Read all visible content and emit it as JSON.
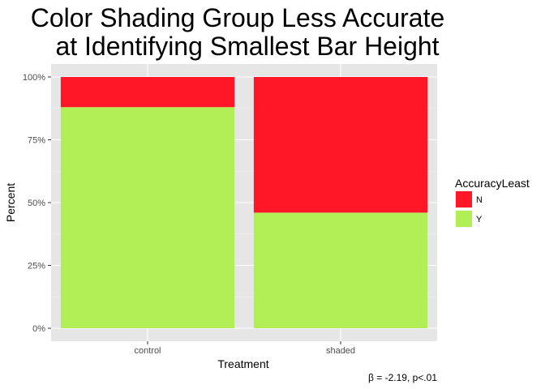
{
  "chart_data": {
    "type": "bar",
    "stacked": true,
    "title_lines": [
      "Color Shading Group Less Accurate",
      "at Identifying Smallest Bar Height"
    ],
    "xlabel": "Treatment",
    "ylabel": "Percent",
    "categories": [
      "control",
      "shaded"
    ],
    "ylim": [
      0,
      1
    ],
    "yticks": [
      {
        "value": 0,
        "label": "0%"
      },
      {
        "value": 0.25,
        "label": "25%"
      },
      {
        "value": 0.5,
        "label": "50%"
      },
      {
        "value": 0.75,
        "label": "75%"
      },
      {
        "value": 1,
        "label": "100%"
      }
    ],
    "series": [
      {
        "name": "Y",
        "color": "#b2ef57",
        "values": [
          0.88,
          0.46
        ]
      },
      {
        "name": "N",
        "color": "#ff1728",
        "values": [
          0.12,
          0.54
        ]
      }
    ],
    "legend": {
      "title": "AccuracyLeast",
      "placement": "right",
      "entries": [
        {
          "label": "N",
          "color": "#ff1728"
        },
        {
          "label": "Y",
          "color": "#b2ef57"
        }
      ]
    },
    "grid": true,
    "panel_background": "#e6e6e6",
    "caption": "β = -2.19, p<.01"
  }
}
